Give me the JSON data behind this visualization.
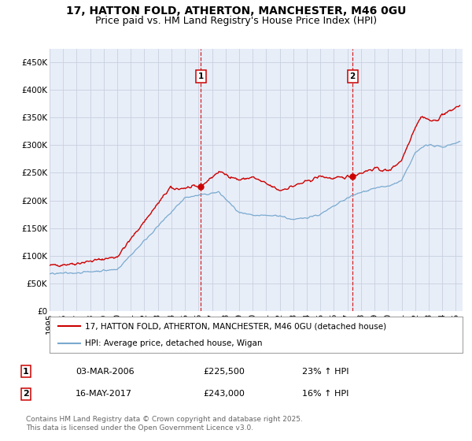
{
  "title": "17, HATTON FOLD, ATHERTON, MANCHESTER, M46 0GU",
  "subtitle": "Price paid vs. HM Land Registry's House Price Index (HPI)",
  "ylim": [
    0,
    475000
  ],
  "xlim_start": 1995.0,
  "xlim_end": 2025.5,
  "yticks": [
    0,
    50000,
    100000,
    150000,
    200000,
    250000,
    300000,
    350000,
    400000,
    450000
  ],
  "ytick_labels": [
    "£0",
    "£50K",
    "£100K",
    "£150K",
    "£200K",
    "£250K",
    "£300K",
    "£350K",
    "£400K",
    "£450K"
  ],
  "xticks": [
    1995,
    1996,
    1997,
    1998,
    1999,
    2000,
    2001,
    2002,
    2003,
    2004,
    2005,
    2006,
    2007,
    2008,
    2009,
    2010,
    2011,
    2012,
    2013,
    2014,
    2015,
    2016,
    2017,
    2018,
    2019,
    2020,
    2021,
    2022,
    2023,
    2024,
    2025
  ],
  "background_color": "#ffffff",
  "plot_bg_color": "#e8eef8",
  "grid_color": "#c8d0e0",
  "red_line_color": "#cc0000",
  "blue_line_color": "#7aaad0",
  "sale1_x": 2006.17,
  "sale1_y": 225500,
  "sale1_label": "1",
  "sale2_x": 2017.37,
  "sale2_y": 243000,
  "sale2_label": "2",
  "vline_color": "#cc0000",
  "legend_label_red": "17, HATTON FOLD, ATHERTON, MANCHESTER, M46 0GU (detached house)",
  "legend_label_blue": "HPI: Average price, detached house, Wigan",
  "table_row1": [
    "1",
    "03-MAR-2006",
    "£225,500",
    "23% ↑ HPI"
  ],
  "table_row2": [
    "2",
    "16-MAY-2017",
    "£243,000",
    "16% ↑ HPI"
  ],
  "footer": "Contains HM Land Registry data © Crown copyright and database right 2025.\nThis data is licensed under the Open Government Licence v3.0.",
  "title_fontsize": 10,
  "subtitle_fontsize": 9,
  "tick_fontsize": 7.5,
  "legend_fontsize": 7.5,
  "table_fontsize": 8,
  "footer_fontsize": 6.5
}
